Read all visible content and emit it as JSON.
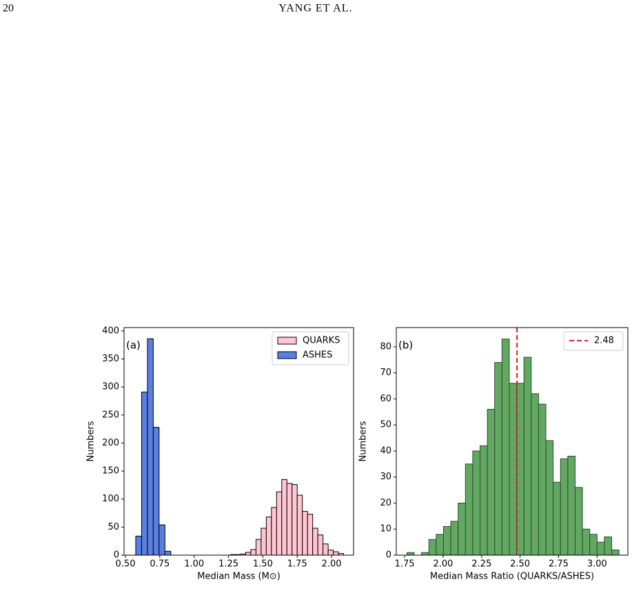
{
  "header": {
    "page": "20",
    "running_title": "YANG ET AL."
  },
  "chart_data": [
    {
      "type": "histogram",
      "annotation": "(a)",
      "xlabel": "Median Mass (M⊙)",
      "ylabel": "Numbers",
      "xlim": [
        0.49,
        2.16
      ],
      "ylim": [
        0,
        406
      ],
      "xticks": [
        {
          "value": 0.5,
          "label": "0.50"
        },
        0.75,
        {
          "value": 1,
          "label": "1.00"
        },
        1.25,
        {
          "value": 1.5,
          "label": "1.50"
        },
        1.75,
        {
          "value": 2,
          "label": "2.00"
        }
      ],
      "yticks": [
        0,
        50,
        100,
        150,
        200,
        250,
        300,
        350,
        400
      ],
      "legend": "upper right",
      "series": [
        {
          "name": "QUARKS",
          "color": "#ffc6d1",
          "bins": [
            1.2625,
            1.3,
            1.3375,
            1.375,
            1.4125,
            1.45,
            1.4875,
            1.525,
            1.5625,
            1.6,
            1.6375,
            1.675,
            1.7125,
            1.75,
            1.7875,
            1.825,
            1.8625,
            1.9,
            1.9375,
            1.975,
            2.0125,
            2.05,
            2.0875
          ],
          "values": [
            1,
            1,
            2,
            5,
            10,
            28,
            48,
            68,
            85,
            113,
            135,
            128,
            126,
            107,
            78,
            73,
            48,
            36,
            20,
            9,
            6,
            3
          ]
        },
        {
          "name": "ASHES",
          "color": "#5b7fe0",
          "bins": [
            0.575,
            0.6175,
            0.66,
            0.7025,
            0.745,
            0.7875,
            0.83
          ],
          "values": [
            34,
            291,
            386,
            228,
            54,
            7
          ]
        }
      ]
    },
    {
      "type": "histogram",
      "annotation": "(b)",
      "xlabel": "Median Mass Ratio (QUARKS/ASHES)",
      "ylabel": "Numbers",
      "xlim": [
        1.696,
        3.2
      ],
      "ylim": [
        0,
        87.4
      ],
      "xticks": [
        1.75,
        {
          "value": 2,
          "label": "2.00"
        },
        2.25,
        {
          "value": 2.5,
          "label": "2.50"
        },
        2.75,
        {
          "value": 3,
          "label": "3.00"
        }
      ],
      "yticks": [
        0,
        10,
        20,
        30,
        40,
        50,
        60,
        70,
        80
      ],
      "legend": "upper right",
      "series": [
        {
          "color": "#62a862",
          "bins": [
            1.765,
            1.8125,
            1.86,
            1.9075,
            1.955,
            2.0025,
            2.05,
            2.0975,
            2.145,
            2.1925,
            2.24,
            2.2875,
            2.335,
            2.3825,
            2.43,
            2.4775,
            2.525,
            2.5725,
            2.62,
            2.6675,
            2.715,
            2.7625,
            2.81,
            2.8575,
            2.905,
            2.9525,
            3.0,
            3.0475,
            3.095,
            3.1425
          ],
          "values": [
            1,
            0,
            1,
            6,
            8,
            11,
            13,
            20,
            35,
            40,
            42,
            56,
            74,
            83,
            66,
            66,
            76,
            62,
            58,
            44,
            28,
            37,
            38,
            26,
            10,
            8,
            5,
            7,
            2
          ]
        }
      ],
      "vline": {
        "x": 2.48,
        "color": "#e31a1c"
      }
    }
  ]
}
